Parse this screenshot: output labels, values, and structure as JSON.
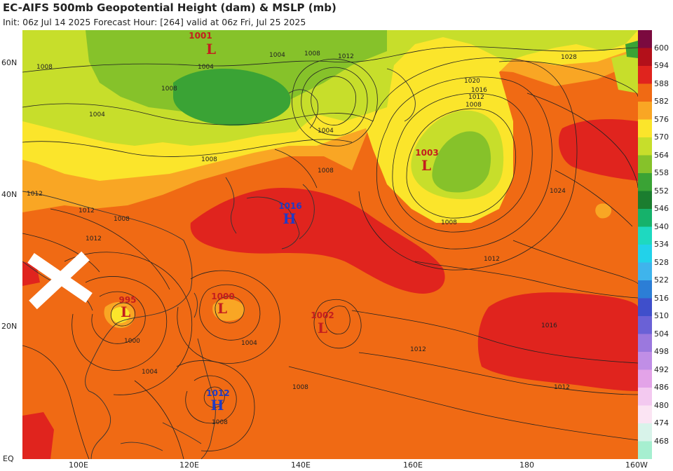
{
  "header": {
    "title": "EC-AIFS 500mb Geopotential Height (dam) & MSLP (mb)",
    "subtitle": "Init: 06z Jul 14 2025   Forecast Hour: [264]   valid at 06z Fri, Jul 25 2025"
  },
  "axes": {
    "lat_labels": [
      "60N",
      "40N",
      "20N",
      "EQ"
    ],
    "lon_labels": [
      "100E",
      "120E",
      "140E",
      "160E",
      "180",
      "160W"
    ]
  },
  "colorbar": {
    "levels": [
      {
        "label": "600",
        "color": "#7b0a3f"
      },
      {
        "label": "594",
        "color": "#b3101a"
      },
      {
        "label": "588",
        "color": "#e0241e"
      },
      {
        "label": "582",
        "color": "#f06a14"
      },
      {
        "label": "576",
        "color": "#f9a624"
      },
      {
        "label": "570",
        "color": "#fbe52b"
      },
      {
        "label": "564",
        "color": "#c7de2b"
      },
      {
        "label": "558",
        "color": "#86c22a"
      },
      {
        "label": "552",
        "color": "#3aa335"
      },
      {
        "label": "546",
        "color": "#1b7d2f"
      },
      {
        "label": "540",
        "color": "#16b26b"
      },
      {
        "label": "534",
        "color": "#1ed9c0"
      },
      {
        "label": "528",
        "color": "#22d2ea"
      },
      {
        "label": "522",
        "color": "#3fb4ec"
      },
      {
        "label": "516",
        "color": "#2c7ed6"
      },
      {
        "label": "510",
        "color": "#3f4fcb"
      },
      {
        "label": "504",
        "color": "#6a61d6"
      },
      {
        "label": "498",
        "color": "#9b78de"
      },
      {
        "label": "492",
        "color": "#c08ee6"
      },
      {
        "label": "486",
        "color": "#e3a3e8"
      },
      {
        "label": "480",
        "color": "#f3c9f0"
      },
      {
        "label": "474",
        "color": "#fbe4f3"
      },
      {
        "label": "468",
        "color": "#d8f3ea"
      }
    ],
    "bottom_color": "#a6efd0"
  },
  "pressure_systems": [
    {
      "type": "L",
      "value": "1001",
      "color": "#c41e1e"
    },
    {
      "type": "L",
      "value": "1003",
      "color": "#c41e1e"
    },
    {
      "type": "H",
      "value": "1016",
      "color": "#1f3bc7"
    },
    {
      "type": "L",
      "value": "1000",
      "color": "#c41e1e"
    },
    {
      "type": "L",
      "value": "1002",
      "color": "#c41e1e"
    },
    {
      "type": "L",
      "value": "995",
      "color": "#c41e1e"
    },
    {
      "type": "H",
      "value": "1012",
      "color": "#1f3bc7"
    }
  ],
  "isobar_labels": [
    "1004",
    "1008",
    "1012",
    "1028",
    "1020",
    "1016",
    "1012",
    "1008",
    "1004",
    "1008",
    "1024",
    "1008",
    "1012",
    "1016",
    "1012",
    "1012",
    "1008",
    "1004",
    "1000",
    "1004",
    "1008",
    "1012",
    "1008",
    "1008",
    "1012",
    "1008",
    "1004",
    "1004",
    "1008",
    "1012"
  ],
  "storm_marker": {
    "icon": "x-cross-icon",
    "color": "#ffffff"
  }
}
